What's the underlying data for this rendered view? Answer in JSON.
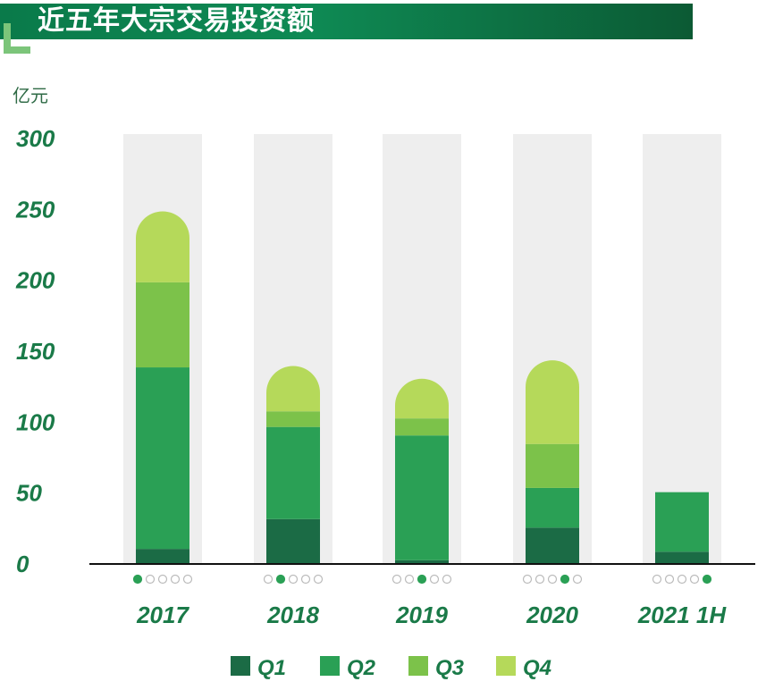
{
  "title": "近五年大宗交易投资额",
  "colors": {
    "title_bg": "#0c7a48",
    "track": "#eeeeee",
    "q1": "#1b6b45",
    "q2": "#2aa055",
    "q3": "#7cc24a",
    "q4": "#b5d95a",
    "dot_active": "#2aa055",
    "dot_inactive": "#bbbbbb",
    "text": "#1a7a48"
  },
  "chart_data": {
    "type": "bar",
    "stacked": true,
    "title": "近五年大宗交易投资额",
    "ylabel": "亿元",
    "xlabel": "",
    "ylim": [
      0,
      300
    ],
    "yticks": [
      "0",
      "50",
      "100",
      "150",
      "200",
      "250",
      "300"
    ],
    "categories": [
      "2017",
      "2018",
      "2019",
      "2020",
      "2021 1H"
    ],
    "series": [
      {
        "name": "Q1",
        "values": [
          10,
          31,
          2,
          25,
          8
        ]
      },
      {
        "name": "Q2",
        "values": [
          128,
          65,
          88,
          28,
          42
        ]
      },
      {
        "name": "Q3",
        "values": [
          60,
          11,
          12,
          31,
          0
        ]
      },
      {
        "name": "Q4",
        "values": [
          50,
          32,
          28,
          59,
          0
        ]
      }
    ],
    "quarter_dots": [
      0,
      1,
      2,
      3,
      4
    ],
    "legend": [
      "Q1",
      "Q2",
      "Q3",
      "Q4"
    ],
    "legend_position": "bottom"
  }
}
